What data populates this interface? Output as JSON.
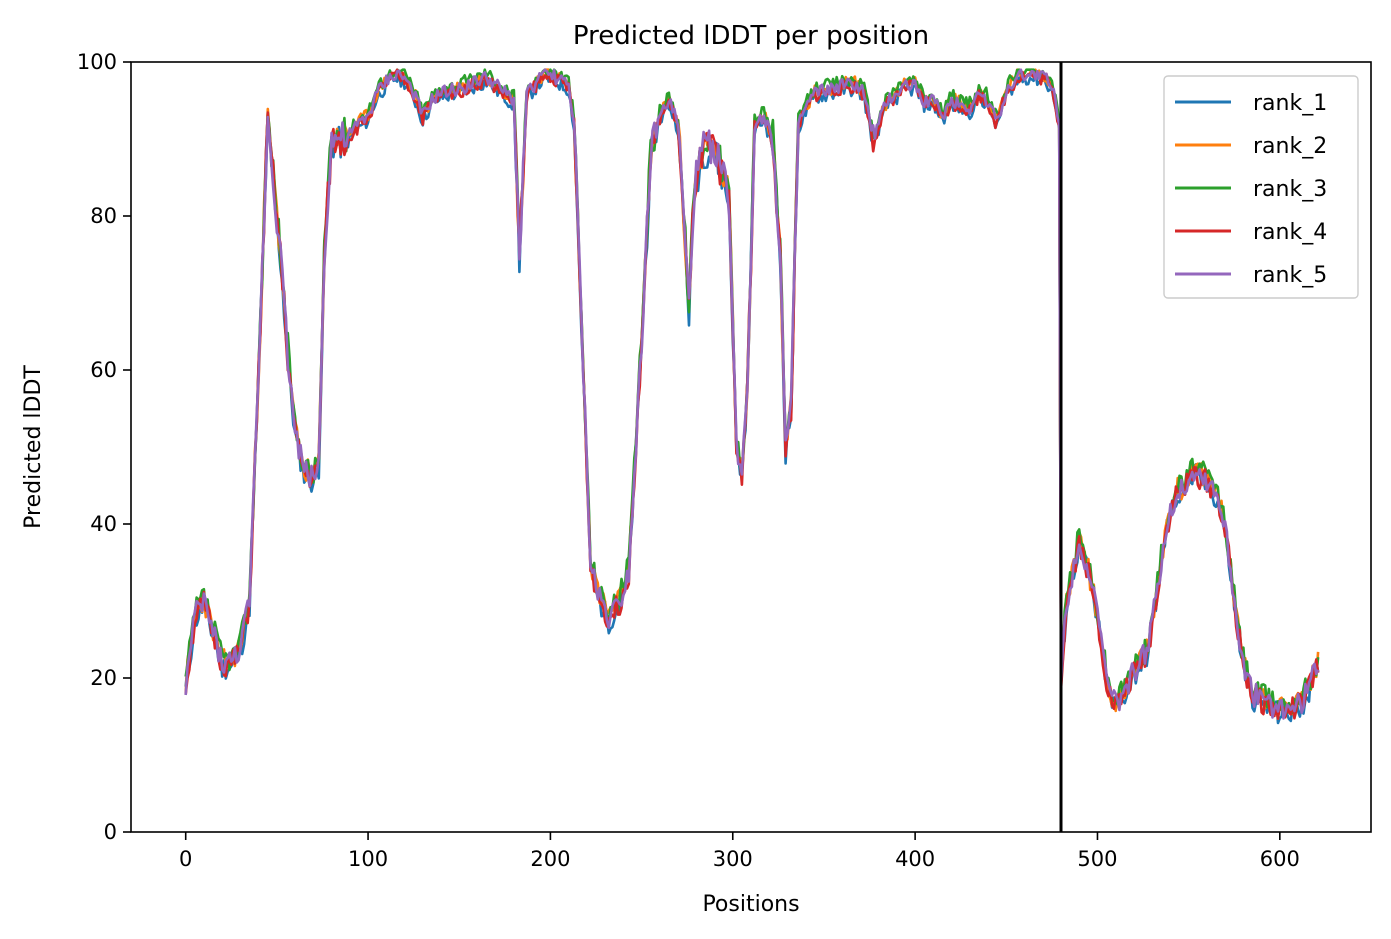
{
  "chart_data": {
    "type": "line",
    "title": "Predicted lDDT per position",
    "xlabel": "Positions",
    "ylabel": "Predicted lDDT",
    "xlim": [
      -30,
      650
    ],
    "ylim": [
      0,
      100
    ],
    "xticks": [
      0,
      100,
      200,
      300,
      400,
      500,
      600
    ],
    "yticks": [
      0,
      20,
      40,
      60,
      80,
      100
    ],
    "grid": false,
    "legend_position": "top-right",
    "vline_x": 480,
    "vline_color": "#000000",
    "keypoints": [
      [
        0,
        19
      ],
      [
        5,
        28
      ],
      [
        10,
        30
      ],
      [
        15,
        26
      ],
      [
        20,
        22
      ],
      [
        25,
        22
      ],
      [
        30,
        24
      ],
      [
        35,
        30
      ],
      [
        40,
        60
      ],
      [
        45,
        93
      ],
      [
        48,
        85
      ],
      [
        52,
        75
      ],
      [
        56,
        62
      ],
      [
        60,
        52
      ],
      [
        65,
        47
      ],
      [
        70,
        46
      ],
      [
        73,
        48
      ],
      [
        76,
        75
      ],
      [
        80,
        90
      ],
      [
        88,
        90
      ],
      [
        95,
        92
      ],
      [
        100,
        93
      ],
      [
        105,
        96
      ],
      [
        110,
        97.5
      ],
      [
        115,
        98.5
      ],
      [
        120,
        98
      ],
      [
        125,
        96
      ],
      [
        130,
        93
      ],
      [
        135,
        95
      ],
      [
        140,
        96
      ],
      [
        150,
        96.5
      ],
      [
        160,
        97.5
      ],
      [
        165,
        98
      ],
      [
        170,
        97
      ],
      [
        175,
        96
      ],
      [
        180,
        95
      ],
      [
        183,
        75
      ],
      [
        187,
        96
      ],
      [
        195,
        98
      ],
      [
        200,
        98.5
      ],
      [
        210,
        97
      ],
      [
        213,
        92
      ],
      [
        218,
        60
      ],
      [
        222,
        35
      ],
      [
        226,
        31
      ],
      [
        232,
        28
      ],
      [
        238,
        30
      ],
      [
        243,
        34
      ],
      [
        248,
        55
      ],
      [
        255,
        88
      ],
      [
        260,
        93
      ],
      [
        265,
        95
      ],
      [
        270,
        92
      ],
      [
        273,
        80
      ],
      [
        276,
        68
      ],
      [
        279,
        84
      ],
      [
        284,
        89
      ],
      [
        290,
        89
      ],
      [
        295,
        85
      ],
      [
        298,
        82
      ],
      [
        302,
        50
      ],
      [
        305,
        47
      ],
      [
        308,
        58
      ],
      [
        312,
        92
      ],
      [
        317,
        93
      ],
      [
        322,
        90
      ],
      [
        326,
        75
      ],
      [
        329,
        50
      ],
      [
        332,
        55
      ],
      [
        336,
        92
      ],
      [
        340,
        94
      ],
      [
        345,
        96
      ],
      [
        355,
        96.5
      ],
      [
        360,
        97
      ],
      [
        368,
        97
      ],
      [
        372,
        96
      ],
      [
        377,
        90
      ],
      [
        380,
        92
      ],
      [
        385,
        95
      ],
      [
        390,
        96
      ],
      [
        395,
        97
      ],
      [
        400,
        97
      ],
      [
        405,
        95
      ],
      [
        410,
        95
      ],
      [
        415,
        93
      ],
      [
        420,
        95
      ],
      [
        430,
        94
      ],
      [
        435,
        96
      ],
      [
        440,
        95
      ],
      [
        445,
        92
      ],
      [
        448,
        95
      ],
      [
        452,
        97
      ],
      [
        458,
        98.5
      ],
      [
        465,
        98.5
      ],
      [
        472,
        98
      ],
      [
        476,
        96
      ],
      [
        479,
        92
      ],
      [
        480,
        20
      ],
      [
        483,
        30
      ],
      [
        490,
        38
      ],
      [
        495,
        34
      ],
      [
        500,
        28
      ],
      [
        505,
        20
      ],
      [
        508,
        17
      ],
      [
        512,
        17
      ],
      [
        518,
        20
      ],
      [
        523,
        22
      ],
      [
        528,
        24
      ],
      [
        533,
        32
      ],
      [
        538,
        40
      ],
      [
        543,
        44
      ],
      [
        548,
        45
      ],
      [
        553,
        47
      ],
      [
        558,
        46
      ],
      [
        563,
        45
      ],
      [
        568,
        42
      ],
      [
        572,
        36
      ],
      [
        576,
        28
      ],
      [
        580,
        22
      ],
      [
        585,
        18
      ],
      [
        592,
        17
      ],
      [
        598,
        16
      ],
      [
        605,
        16
      ],
      [
        612,
        17
      ],
      [
        618,
        20
      ],
      [
        621,
        22
      ]
    ],
    "series": [
      {
        "name": "rank_1",
        "color": "#1f77b4",
        "seed": 11,
        "bias": -0.6
      },
      {
        "name": "rank_2",
        "color": "#ff7f0e",
        "seed": 23,
        "bias": 0.2
      },
      {
        "name": "rank_3",
        "color": "#2ca02c",
        "seed": 37,
        "bias": 0.6
      },
      {
        "name": "rank_4",
        "color": "#d62728",
        "seed": 51,
        "bias": -0.3
      },
      {
        "name": "rank_5",
        "color": "#9467bd",
        "seed": 73,
        "bias": 0.0
      }
    ]
  }
}
